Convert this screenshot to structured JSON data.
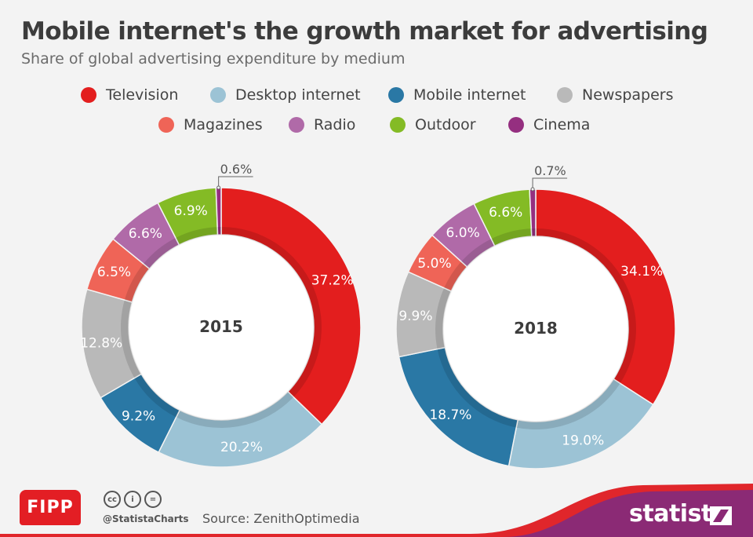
{
  "header": {
    "title": "Mobile internet's the growth market for advertising",
    "subtitle": "Share of global advertising expenditure by medium"
  },
  "chart_data": [
    {
      "type": "pie",
      "style": "donut",
      "center_label": "2015",
      "categories": [
        "Television",
        "Desktop internet",
        "Mobile internet",
        "Newspapers",
        "Magazines",
        "Radio",
        "Outdoor",
        "Cinema"
      ],
      "values": [
        37.2,
        20.2,
        9.2,
        12.8,
        6.5,
        6.6,
        6.9,
        0.6
      ],
      "labels": [
        "37.2%",
        "20.2%",
        "9.2%",
        "12.8%",
        "6.5%",
        "6.6%",
        "6.9%",
        "0.6%"
      ]
    },
    {
      "type": "pie",
      "style": "donut",
      "center_label": "2018",
      "categories": [
        "Television",
        "Desktop internet",
        "Mobile internet",
        "Newspapers",
        "Magazines",
        "Radio",
        "Outdoor",
        "Cinema"
      ],
      "values": [
        34.1,
        19.0,
        18.7,
        9.9,
        5.0,
        6.0,
        6.6,
        0.7
      ],
      "labels": [
        "34.1%",
        "19.0%",
        "18.7%",
        "9.9%",
        "5.0%",
        "6.0%",
        "6.6%",
        "0.7%"
      ]
    }
  ],
  "legend": {
    "placement": "top",
    "items": [
      {
        "label": "Television",
        "color": "#e31e1e"
      },
      {
        "label": "Desktop internet",
        "color": "#9cc3d5"
      },
      {
        "label": "Mobile internet",
        "color": "#2a78a5"
      },
      {
        "label": "Newspapers",
        "color": "#b9b9b9"
      },
      {
        "label": "Magazines",
        "color": "#ef6457"
      },
      {
        "label": "Radio",
        "color": "#b06aa8"
      },
      {
        "label": "Outdoor",
        "color": "#84bb25"
      },
      {
        "label": "Cinema",
        "color": "#952f80"
      }
    ]
  },
  "footer": {
    "partner_logo": "FIPP",
    "license_icons": [
      "cc-icon",
      "by-icon",
      "nd-icon"
    ],
    "license_glyphs": [
      "cc",
      "i",
      "="
    ],
    "handle": "@StatistaCharts",
    "source": "Source: ZenithOptimedia",
    "brand": "statista",
    "brand_color": "#8b2a75",
    "accent_color": "#e0262b"
  }
}
